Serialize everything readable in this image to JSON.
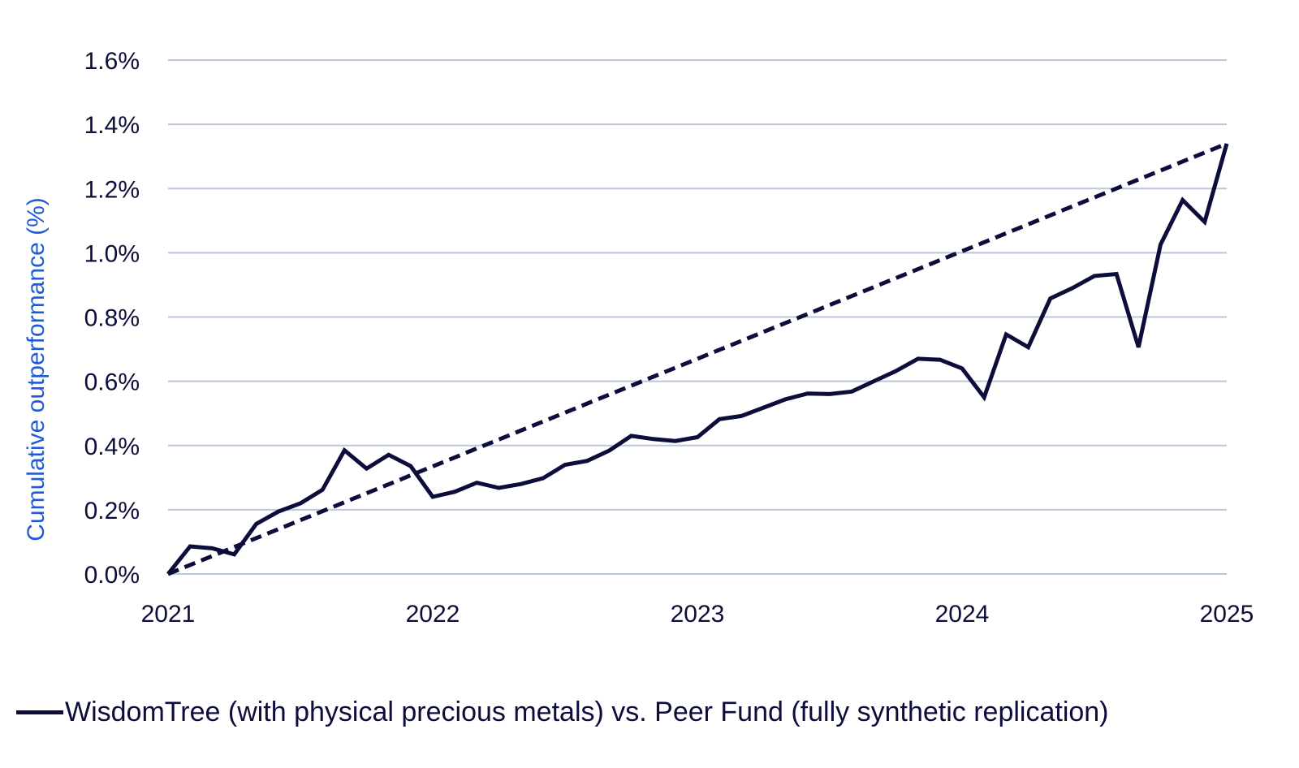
{
  "chart_data": {
    "type": "line",
    "title": "",
    "xlabel": "",
    "ylabel": "Cumulative outperformance (%)",
    "xlim": [
      2021,
      2025
    ],
    "ylim": [
      0,
      1.6
    ],
    "x_ticks": [
      "2021",
      "2022",
      "2023",
      "2024",
      "2025"
    ],
    "y_ticks": [
      "0.0%",
      "0.2%",
      "0.4%",
      "0.6%",
      "0.8%",
      "1.0%",
      "1.2%",
      "1.4%",
      "1.6%"
    ],
    "grid": true,
    "legend_position": "bottom-left",
    "colors": {
      "series": "#0d0d3b",
      "grid": "#b8c8d8",
      "ylabel": "#1f5bd6"
    },
    "series": [
      {
        "name": "WisdomTree (with physical precious metals) vs. Peer Fund (fully synthetic replication)",
        "style": "solid",
        "x": [
          "2021-01",
          "2021-02",
          "2021-03",
          "2021-04",
          "2021-05",
          "2021-06",
          "2021-07",
          "2021-08",
          "2021-09",
          "2021-10",
          "2021-11",
          "2021-12",
          "2022-01",
          "2022-02",
          "2022-03",
          "2022-04",
          "2022-05",
          "2022-06",
          "2022-07",
          "2022-08",
          "2022-09",
          "2022-10",
          "2022-11",
          "2022-12",
          "2023-01",
          "2023-02",
          "2023-03",
          "2023-04",
          "2023-05",
          "2023-06",
          "2023-07",
          "2023-08",
          "2023-09",
          "2023-10",
          "2023-11",
          "2023-12",
          "2024-01",
          "2024-02",
          "2024-03",
          "2024-04",
          "2024-05",
          "2024-06",
          "2024-07",
          "2024-08",
          "2024-09",
          "2024-10",
          "2024-11",
          "2024-12",
          "2025-01"
        ],
        "values": [
          0.0,
          0.086,
          0.08,
          0.061,
          0.156,
          0.194,
          0.22,
          0.262,
          0.385,
          0.328,
          0.371,
          0.336,
          0.24,
          0.256,
          0.284,
          0.268,
          0.28,
          0.298,
          0.34,
          0.352,
          0.384,
          0.43,
          0.42,
          0.414,
          0.426,
          0.482,
          0.492,
          0.518,
          0.544,
          0.562,
          0.56,
          0.568,
          0.6,
          0.632,
          0.67,
          0.667,
          0.64,
          0.55,
          0.746,
          0.706,
          0.858,
          0.89,
          0.928,
          0.934,
          0.706,
          1.026,
          1.164,
          1.096,
          1.34
        ]
      },
      {
        "name": "",
        "style": "dashed",
        "x": [
          "2021-01",
          "2025-01"
        ],
        "values": [
          0.0,
          1.34
        ]
      }
    ]
  },
  "legend": {
    "label": "WisdomTree (with physical precious metals) vs. Peer Fund (fully synthetic replication)"
  }
}
